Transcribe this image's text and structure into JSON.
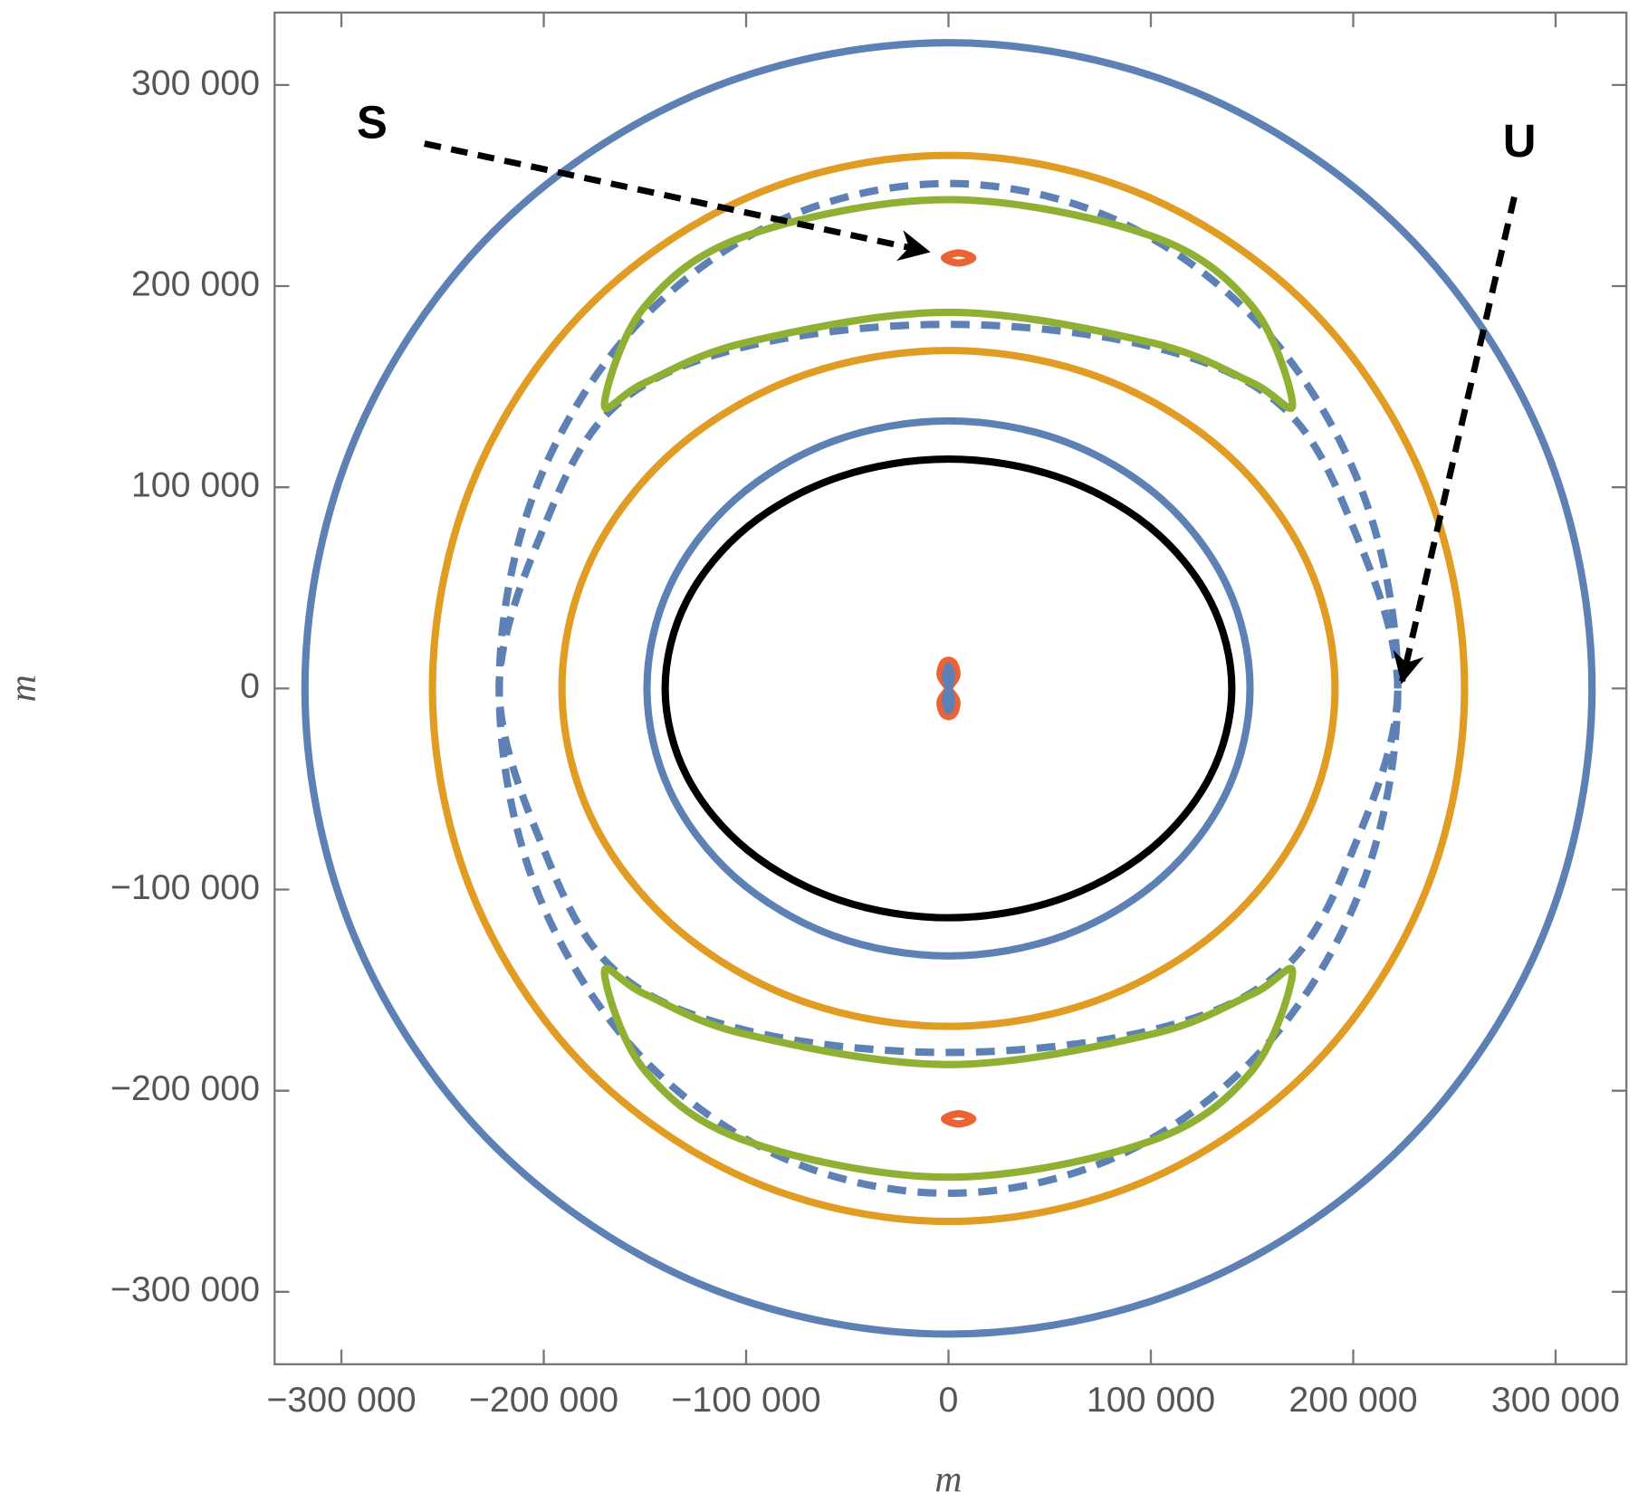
{
  "chart_data": {
    "type": "line",
    "x_label": "m",
    "y_label": "m",
    "xlim": [
      -333000,
      335000
    ],
    "ylim": [
      -336000,
      336000
    ],
    "xticks": [
      {
        "value": -300000,
        "label": "−300 000"
      },
      {
        "value": -200000,
        "label": "−200 000"
      },
      {
        "value": -100000,
        "label": "−100 000"
      },
      0,
      {
        "value": 100000,
        "label": "100 000"
      },
      {
        "value": 200000,
        "label": "200 000"
      },
      {
        "value": 300000,
        "label": "300 000"
      }
    ],
    "yticks": [
      {
        "value": -300000,
        "label": "−300 000"
      },
      {
        "value": -200000,
        "label": "−200 000"
      },
      {
        "value": -100000,
        "label": "−100 000"
      },
      0,
      {
        "value": 100000,
        "label": "100 000"
      },
      {
        "value": 200000,
        "label": "200 000"
      },
      {
        "value": 300000,
        "label": "300 000"
      }
    ],
    "grid": false,
    "annotations": [
      {
        "text": "S"
      },
      {
        "text": "U"
      }
    ],
    "series": [
      {
        "color": "#5e81b5",
        "dashed": false,
        "closed": true,
        "x": [
          318000,
          293800,
          224900,
          121700,
          0,
          -121700,
          -224900,
          -293800,
          -318000,
          -293800,
          -224900,
          -121700,
          0,
          121700,
          224900,
          293800
        ],
        "y": [
          0,
          122800,
          227000,
          296600,
          321000,
          296600,
          227000,
          122800,
          0,
          -122800,
          -227000,
          -296600,
          -321000,
          -296600,
          -227000,
          -122800
        ]
      },
      {
        "color": "#e19c24",
        "dashed": false,
        "closed": true,
        "x": [
          255000,
          235600,
          180300,
          97600,
          0,
          -97600,
          -180300,
          -235600,
          -255000,
          -235600,
          -180300,
          -97600,
          0,
          97600,
          180300,
          235600
        ],
        "y": [
          0,
          101400,
          187400,
          244800,
          265000,
          244800,
          187400,
          101400,
          0,
          -101400,
          -187400,
          -244800,
          -265000,
          -244800,
          -187400,
          -101400
        ]
      },
      {
        "color": "#5e81b5",
        "dashed": true,
        "closed": true,
        "x": [
          222000,
          205100,
          157000,
          85000,
          0,
          -85000,
          -157000,
          -205100,
          -222000,
          -205100,
          -157000,
          -85000,
          0,
          85000,
          157000,
          205100
        ],
        "y": [
          0,
          96100,
          177500,
          231900,
          251000,
          231900,
          177500,
          96100,
          0,
          -96100,
          -177500,
          -231900,
          -251000,
          -231900,
          -177500,
          -96100
        ]
      },
      {
        "color": "#5e81b5",
        "dashed": true,
        "closed": true,
        "x": [
          222000,
          200000,
          165000,
          100000,
          0,
          -100000,
          -165000,
          -200000,
          -222000,
          -200000,
          -165000,
          -100000,
          0,
          100000,
          165000,
          200000
        ],
        "y": [
          0,
          80000,
          140000,
          170000,
          181000,
          170000,
          140000,
          80000,
          0,
          -80000,
          -140000,
          -170000,
          -181000,
          -170000,
          -140000,
          -80000
        ]
      },
      {
        "color": "#8fb032",
        "dashed": false,
        "closed": true,
        "x": [
          170000,
          150000,
          100000,
          0,
          -100000,
          -150000,
          -170000,
          -150000,
          -100000,
          0,
          100000,
          150000
        ],
        "y": [
          141000,
          190000,
          225000,
          243000,
          225000,
          190000,
          141000,
          152000,
          172000,
          187000,
          172000,
          152000
        ]
      },
      {
        "color": "#8fb032",
        "dashed": false,
        "closed": true,
        "x": [
          170000,
          150000,
          100000,
          0,
          -100000,
          -150000,
          -170000,
          -150000,
          -100000,
          0,
          100000,
          150000
        ],
        "y": [
          -141000,
          -190000,
          -225000,
          -243000,
          -225000,
          -190000,
          -141000,
          -152000,
          -172000,
          -187000,
          -172000,
          -152000
        ]
      },
      {
        "color": "#e19c24",
        "dashed": false,
        "closed": true,
        "x": [
          191000,
          176500,
          135000,
          73100,
          0,
          -73100,
          -135000,
          -176500,
          -191000,
          -176500,
          -135000,
          -73100,
          0,
          73100,
          135000,
          176500
        ],
        "y": [
          0,
          64300,
          118800,
          155200,
          168000,
          155200,
          118800,
          64300,
          0,
          -64300,
          -118800,
          -155200,
          -168000,
          -155200,
          -118800,
          -64300
        ]
      },
      {
        "color": "#5e81b5",
        "dashed": false,
        "closed": true,
        "x": [
          149000,
          137700,
          105400,
          57000,
          0,
          -57000,
          -105400,
          -137700,
          -149000,
          -137700,
          -105400,
          -57000,
          0,
          57000,
          105400,
          137700
        ],
        "y": [
          0,
          50900,
          94000,
          122900,
          133000,
          122900,
          94000,
          50900,
          0,
          -50900,
          -94000,
          -122900,
          -133000,
          -122900,
          -94000,
          -50900
        ]
      },
      {
        "color": "#000000",
        "dashed": false,
        "closed": true,
        "x": [
          140000,
          129300,
          99000,
          53600,
          0,
          -53600,
          -99000,
          -129300,
          -140000,
          -129300,
          -99000,
          -53600,
          0,
          53600,
          99000,
          129300
        ],
        "y": [
          0,
          43600,
          80600,
          105300,
          114000,
          105300,
          80600,
          43600,
          0,
          -43600,
          -80600,
          -105300,
          -114000,
          -105300,
          -80600,
          -43600
        ]
      },
      {
        "color": "#eb6235",
        "dashed": false,
        "closed": true,
        "x": [
          12000,
          5000,
          -2000,
          5000
        ],
        "y": [
          214000,
          216500,
          214000,
          211500
        ]
      },
      {
        "color": "#eb6235",
        "dashed": false,
        "closed": true,
        "x": [
          12000,
          5000,
          -2000,
          5000
        ],
        "y": [
          -214000,
          -211500,
          -214000,
          -216500
        ]
      },
      {
        "color": "#eb6235",
        "dashed": false,
        "closed": true,
        "x": [
          0,
          4000,
          3000,
          0,
          -3000,
          -4000,
          0,
          4000,
          3000,
          0,
          -3000,
          -4000
        ],
        "y": [
          0,
          6000,
          12000,
          14000,
          12000,
          6000,
          0,
          -6000,
          -12000,
          -14000,
          -12000,
          -6000
        ]
      },
      {
        "color": "#5e81b5",
        "dashed": false,
        "closed": true,
        "x": [
          0,
          1500,
          0,
          -1500,
          0,
          1500,
          0,
          -1500
        ],
        "y": [
          0,
          6000,
          11000,
          6000,
          0,
          -6000,
          -11000,
          -6000
        ]
      }
    ]
  }
}
